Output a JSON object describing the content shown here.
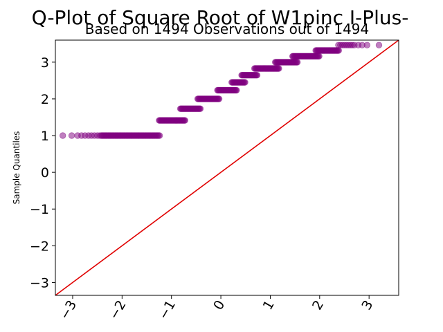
{
  "chart_data": {
    "type": "scatter",
    "title": "Q-Plot of Square Root of W1pinc I-Plus-",
    "subtitle": "Based on 1494 Observations out of 1494",
    "xlabel": "",
    "ylabel": "Sample Quantiles",
    "xlim": [
      -3.35,
      3.6
    ],
    "ylim": [
      -3.35,
      3.6
    ],
    "xticks": [
      -3,
      -2,
      -1,
      0,
      1,
      2,
      3
    ],
    "yticks": [
      -3,
      -2,
      -1,
      0,
      1,
      2,
      3
    ],
    "xtick_labels": [
      "−3",
      "−2",
      "−1",
      "0",
      "1",
      "2",
      "3"
    ],
    "ytick_labels": [
      "−3",
      "−2",
      "−1",
      "0",
      "1",
      "2",
      "3"
    ],
    "grid": false,
    "point_color": "#800080",
    "reference_line_color": "#e00000",
    "reference_line": {
      "slope": 1,
      "intercept": 0
    },
    "steps": [
      {
        "y": 1.0,
        "x_from": -3.2,
        "x_to": -1.23
      },
      {
        "y": 1.414,
        "x_from": -1.25,
        "x_to": -0.72
      },
      {
        "y": 1.732,
        "x_from": -0.82,
        "x_to": -0.4
      },
      {
        "y": 2.0,
        "x_from": -0.47,
        "x_to": -0.02
      },
      {
        "y": 2.236,
        "x_from": -0.07,
        "x_to": 0.33
      },
      {
        "y": 2.449,
        "x_from": 0.22,
        "x_to": 0.5
      },
      {
        "y": 2.646,
        "x_from": 0.42,
        "x_to": 0.74
      },
      {
        "y": 2.828,
        "x_from": 0.68,
        "x_to": 1.18
      },
      {
        "y": 3.0,
        "x_from": 1.1,
        "x_to": 1.55
      },
      {
        "y": 3.162,
        "x_from": 1.45,
        "x_to": 2.0
      },
      {
        "y": 3.317,
        "x_from": 1.92,
        "x_to": 2.4
      },
      {
        "y": 3.464,
        "x_from": 2.38,
        "x_to": 3.2
      }
    ]
  }
}
